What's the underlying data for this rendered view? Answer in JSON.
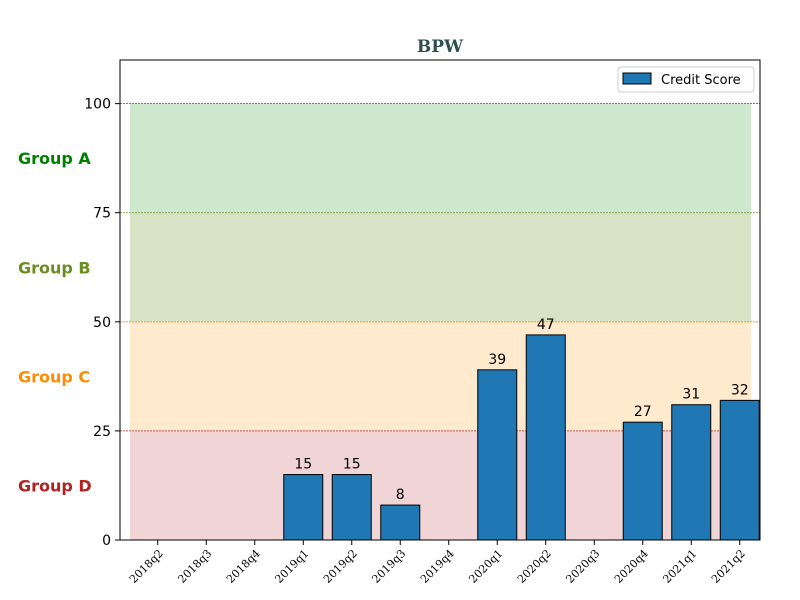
{
  "chart_data": {
    "type": "bar",
    "title": "BPW",
    "categories": [
      "2018q2",
      "2018q3",
      "2018q4",
      "2019q1",
      "2019q2",
      "2019q3",
      "2019q4",
      "2020q1",
      "2020q2",
      "2020q3",
      "2020q4",
      "2021q1",
      "2021q2"
    ],
    "series": [
      {
        "name": "Credit Score",
        "values": [
          0,
          0,
          0,
          15,
          15,
          8,
          0,
          39,
          47,
          0,
          27,
          31,
          32
        ],
        "labels": [
          "",
          "",
          "",
          "15",
          "15",
          "8",
          "",
          "39",
          "47",
          "",
          "27",
          "31",
          "32"
        ],
        "color": "#1f77b4"
      }
    ],
    "ylim": [
      0,
      110
    ],
    "yticks": [
      "0",
      "25",
      "50",
      "75",
      "100"
    ],
    "xlabel": "",
    "ylabel": "",
    "legend": "top-right",
    "grid": false,
    "bands": [
      {
        "name": "Group A",
        "from": 75,
        "to": 100,
        "fill": "#a6d5a6",
        "label_color": "#008000",
        "line_color": "#008000"
      },
      {
        "name": "Group B",
        "from": 50,
        "to": 75,
        "fill": "#b5cc95",
        "label_color": "#6b8e23",
        "line_color": "#6b8e23"
      },
      {
        "name": "Group C",
        "from": 25,
        "to": 50,
        "fill": "#ffd9a6",
        "label_color": "#ff8c00",
        "line_color": "#ff8c00"
      },
      {
        "name": "Group D",
        "from": 0,
        "to": 25,
        "fill": "#e3b1b5",
        "label_color": "#b22222",
        "line_color": "#b22222"
      }
    ]
  }
}
